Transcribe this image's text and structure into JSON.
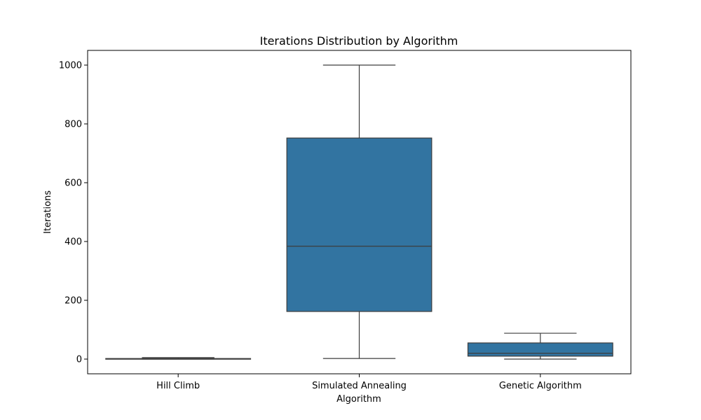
{
  "chart_data": {
    "type": "boxplot",
    "title": "Iterations Distribution by Algorithm",
    "xlabel": "Algorithm",
    "ylabel": "Iterations",
    "ylim": [
      -50,
      1050
    ],
    "yticks": [
      0,
      200,
      400,
      600,
      800,
      1000
    ],
    "grid": false,
    "legend": "none",
    "box_color": "#3274A1",
    "line_color": "#3d3d3d",
    "categories": [
      "Hill Climb",
      "Simulated Annealing",
      "Genetic Algorithm"
    ],
    "boxes": [
      {
        "category": "Hill Climb",
        "whisker_low": 0,
        "q1": 0,
        "median": 1,
        "q3": 2,
        "whisker_high": 5
      },
      {
        "category": "Simulated Annealing",
        "whisker_low": 2,
        "q1": 162,
        "median": 384,
        "q3": 752,
        "whisker_high": 1000
      },
      {
        "category": "Genetic Algorithm",
        "whisker_low": 0,
        "q1": 10,
        "median": 20,
        "q3": 55,
        "whisker_high": 88
      }
    ]
  }
}
